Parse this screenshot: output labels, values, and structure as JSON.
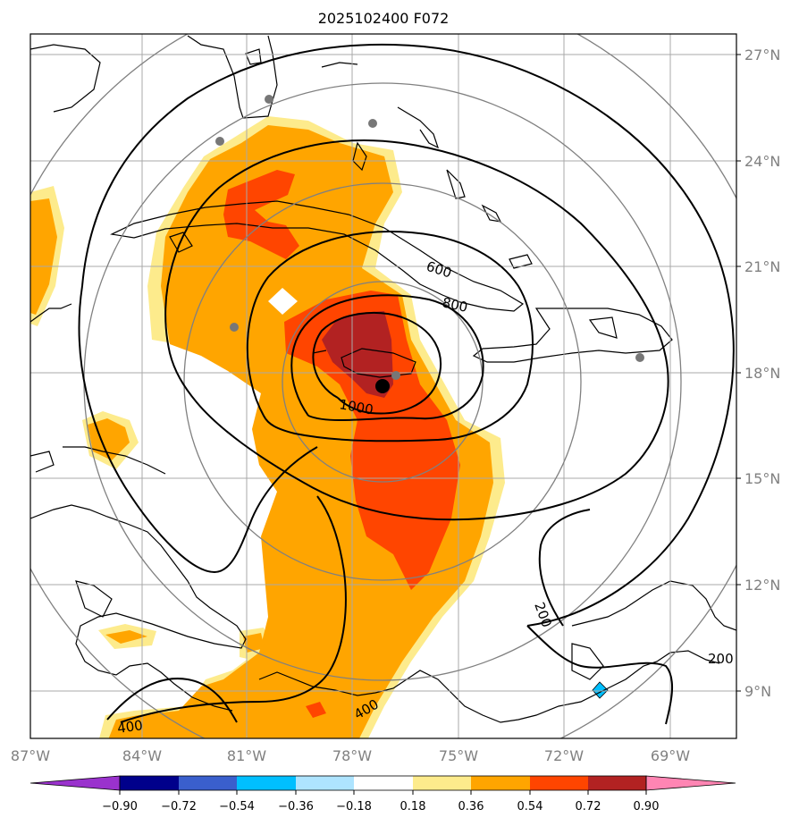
{
  "title": "2025102400 F072",
  "map": {
    "lat_labels": [
      "27°N",
      "24°N",
      "21°N",
      "18°N",
      "15°N",
      "12°N",
      "9°N"
    ],
    "lon_labels": [
      "87°W",
      "84°W",
      "81°W",
      "78°W",
      "75°W",
      "72°W",
      "69°W"
    ],
    "contour_labels": [
      "600",
      "800",
      "1000",
      "400",
      "400",
      "200",
      "200"
    ],
    "colors": {
      "yellow": "#fdeb8c",
      "orange": "#ffa500",
      "red": "#ff4500",
      "darkred": "#b22222",
      "pink": "#ff85b3",
      "lightblue": "#aee4ff",
      "cyan": "#00bfff",
      "graticule": "#a9a9a9",
      "ring": "#808080",
      "station": "#777777"
    }
  },
  "colorbar": {
    "tick_labels": [
      "−0.90",
      "−0.72",
      "−0.54",
      "−0.36",
      "−0.18",
      "0.18",
      "0.36",
      "0.54",
      "0.72",
      "0.90"
    ],
    "colors": [
      "#9a32cd",
      "#00008b",
      "#3a5fcd",
      "#00bfff",
      "#aee4ff",
      "#ffffff",
      "#fdeb8c",
      "#ffa500",
      "#ff4500",
      "#b22222",
      "#ff85b3"
    ]
  }
}
